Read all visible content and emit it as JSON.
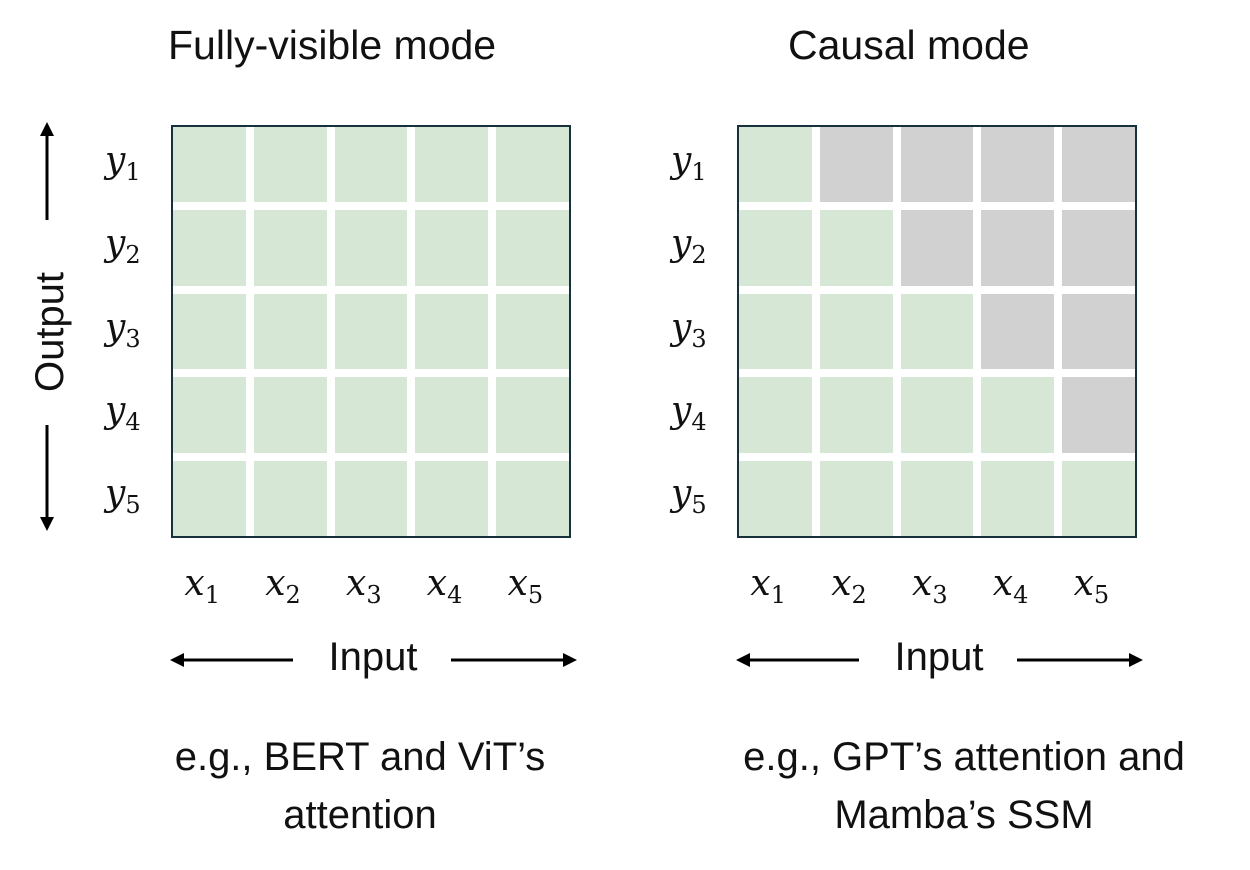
{
  "colors": {
    "visible": "#d6e7d5",
    "masked": "#d1d1d1",
    "border": "#16303c",
    "gap": "#ffffff"
  },
  "output_axis_label": "Output",
  "panels": [
    {
      "title": "Fully-visible mode",
      "row_labels": [
        {
          "base": "y",
          "sub": "1"
        },
        {
          "base": "y",
          "sub": "2"
        },
        {
          "base": "y",
          "sub": "3"
        },
        {
          "base": "y",
          "sub": "4"
        },
        {
          "base": "y",
          "sub": "5"
        }
      ],
      "col_labels": [
        {
          "base": "x",
          "sub": "1"
        },
        {
          "base": "x",
          "sub": "2"
        },
        {
          "base": "x",
          "sub": "3"
        },
        {
          "base": "x",
          "sub": "4"
        },
        {
          "base": "x",
          "sub": "5"
        }
      ],
      "mask": [
        [
          1,
          1,
          1,
          1,
          1
        ],
        [
          1,
          1,
          1,
          1,
          1
        ],
        [
          1,
          1,
          1,
          1,
          1
        ],
        [
          1,
          1,
          1,
          1,
          1
        ],
        [
          1,
          1,
          1,
          1,
          1
        ]
      ],
      "input_label": "Input",
      "caption_line1": "e.g., BERT and ViT’s",
      "caption_line2": "attention"
    },
    {
      "title": "Causal mode",
      "row_labels": [
        {
          "base": "y",
          "sub": "1"
        },
        {
          "base": "y",
          "sub": "2"
        },
        {
          "base": "y",
          "sub": "3"
        },
        {
          "base": "y",
          "sub": "4"
        },
        {
          "base": "y",
          "sub": "5"
        }
      ],
      "col_labels": [
        {
          "base": "x",
          "sub": "1"
        },
        {
          "base": "x",
          "sub": "2"
        },
        {
          "base": "x",
          "sub": "3"
        },
        {
          "base": "x",
          "sub": "4"
        },
        {
          "base": "x",
          "sub": "5"
        }
      ],
      "mask": [
        [
          1,
          0,
          0,
          0,
          0
        ],
        [
          1,
          1,
          0,
          0,
          0
        ],
        [
          1,
          1,
          1,
          0,
          0
        ],
        [
          1,
          1,
          1,
          1,
          0
        ],
        [
          1,
          1,
          1,
          1,
          1
        ]
      ],
      "input_label": "Input",
      "caption_line1": "e.g., GPT’s attention and",
      "caption_line2": "Mamba’s SSM"
    }
  ]
}
